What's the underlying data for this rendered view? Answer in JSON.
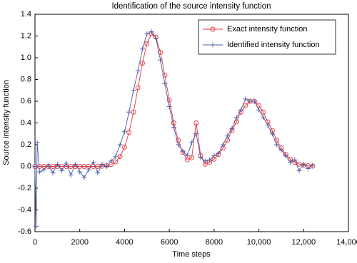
{
  "chart_data": {
    "type": "line",
    "title": "Identification of the source intensity function",
    "xlabel": "Time steps",
    "ylabel": "Source intensity function",
    "xlim": [
      0,
      14000
    ],
    "ylim": [
      -0.6,
      1.4
    ],
    "xticks": [
      0,
      2000,
      4000,
      6000,
      8000,
      {
        "value": 10000,
        "label": "10,000"
      },
      {
        "value": 12000,
        "label": "12,000"
      },
      {
        "value": 14000,
        "label": "14,000"
      }
    ],
    "yticks": [
      -0.6,
      -0.4,
      -0.2,
      {
        "value": 0,
        "label": "0.0"
      },
      0.2,
      0.4,
      0.6,
      0.8,
      {
        "value": 1,
        "label": "1.0"
      },
      1.2,
      1.4
    ],
    "grid": false,
    "legend": "upper right",
    "series": [
      {
        "name": "Exact intensity function",
        "color": "#e8353a",
        "marker": "circle",
        "x": [
          0,
          200,
          400,
          600,
          800,
          1000,
          1200,
          1400,
          1600,
          1800,
          2000,
          2200,
          2400,
          2600,
          2800,
          3000,
          3200,
          3400,
          3600,
          3800,
          4000,
          4200,
          4400,
          4600,
          4800,
          5000,
          5200,
          5400,
          5600,
          5800,
          6000,
          6200,
          6400,
          6600,
          6800,
          7000,
          7200,
          7400,
          7600,
          7800,
          8000,
          8200,
          8400,
          8600,
          8800,
          9000,
          9200,
          9400,
          9600,
          9800,
          10000,
          10200,
          10400,
          10600,
          10800,
          11000,
          11200,
          11400,
          11600,
          11800,
          12000,
          12200,
          12400
        ],
        "values": [
          0,
          0,
          0,
          0,
          0,
          0,
          0,
          0,
          0,
          0,
          0,
          0,
          0,
          0,
          0,
          0.002,
          0.007,
          0.018,
          0.042,
          0.091,
          0.177,
          0.313,
          0.5,
          0.724,
          0.95,
          1.13,
          1.22,
          1.19,
          1.05,
          0.84,
          0.61,
          0.4,
          0.24,
          0.13,
          0.06,
          0.08,
          0.4,
          0.1,
          0.021,
          0.039,
          0.067,
          0.11,
          0.17,
          0.24,
          0.33,
          0.41,
          0.5,
          0.56,
          0.6,
          0.6,
          0.56,
          0.5,
          0.41,
          0.33,
          0.24,
          0.17,
          0.11,
          0.067,
          0.039,
          0.021,
          0.011,
          0.006,
          0.003
        ]
      },
      {
        "name": "Identified intensity function",
        "color": "#4a5ca8",
        "marker": "plus",
        "x": [
          0,
          50,
          100,
          200,
          400,
          600,
          800,
          1000,
          1200,
          1400,
          1600,
          1800,
          2000,
          2200,
          2400,
          2600,
          2800,
          3000,
          3200,
          3400,
          3600,
          3800,
          4000,
          4200,
          4400,
          4600,
          4800,
          5000,
          5200,
          5400,
          5600,
          5800,
          6000,
          6200,
          6400,
          6600,
          6800,
          7000,
          7200,
          7400,
          7600,
          7800,
          8000,
          8200,
          8400,
          8600,
          8800,
          9000,
          9200,
          9400,
          9600,
          9800,
          10000,
          10200,
          10400,
          10600,
          10800,
          11000,
          11200,
          11400,
          11600,
          11800,
          12000,
          12200,
          12400
        ],
        "values": [
          0,
          -0.55,
          0.22,
          -0.05,
          -0.03,
          0.01,
          -0.06,
          0.02,
          -0.04,
          0.03,
          -0.08,
          0.02,
          -0.05,
          -0.1,
          -0.03,
          0.04,
          -0.06,
          0.02,
          0,
          0.05,
          0.09,
          0.2,
          0.32,
          0.5,
          0.7,
          0.88,
          1.08,
          1.22,
          1.24,
          1.18,
          0.98,
          0.76,
          0.55,
          0.36,
          0.2,
          0.14,
          0.1,
          0.22,
          0.3,
          0.08,
          0.05,
          0.06,
          0.1,
          0.12,
          0.2,
          0.28,
          0.35,
          0.45,
          0.52,
          0.62,
          0.6,
          0.6,
          0.52,
          0.45,
          0.38,
          0.3,
          0.2,
          0.15,
          0.1,
          0.04,
          0.06,
          -0.04,
          0.02,
          -0.02,
          0.01
        ]
      }
    ]
  }
}
